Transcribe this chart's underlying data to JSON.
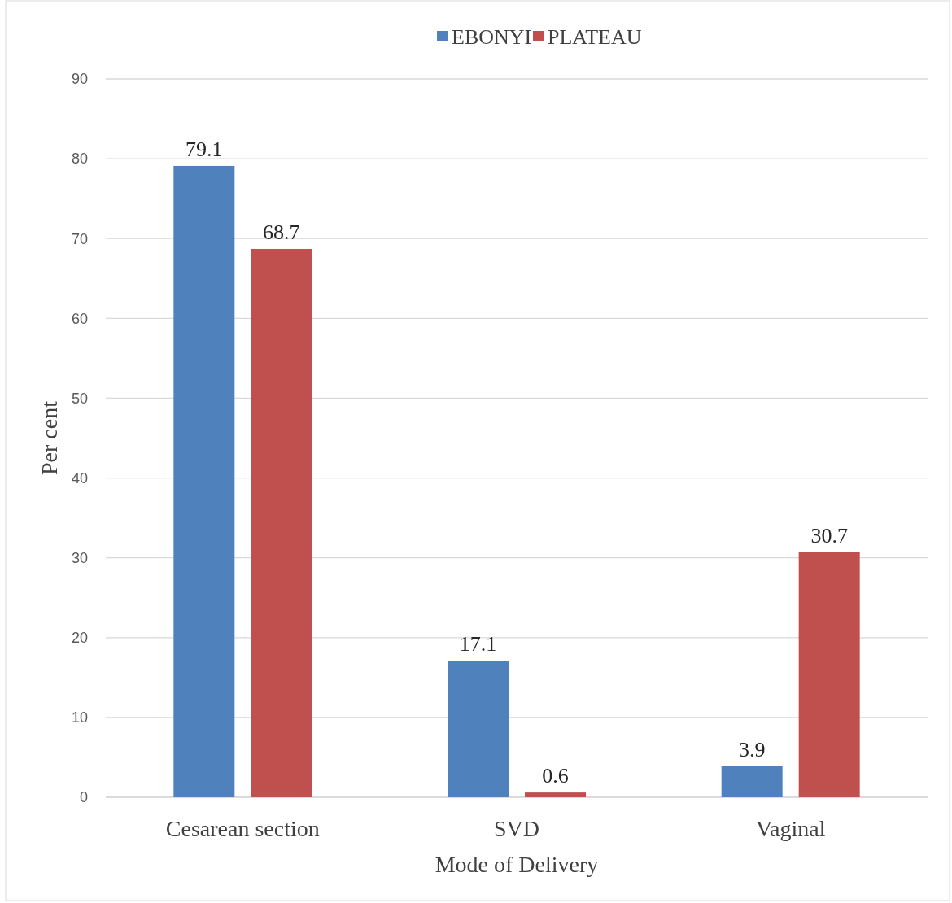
{
  "chart_data": {
    "type": "bar",
    "xlabel": "Mode of Delivery",
    "ylabel": "Per cent",
    "categories": [
      "Cesarean section",
      "SVD",
      "Vaginal"
    ],
    "series": [
      {
        "name": "EBONYI",
        "color": "#4f81bd",
        "values": [
          79.1,
          17.1,
          3.9
        ]
      },
      {
        "name": "PLATEAU",
        "color": "#c0504d",
        "values": [
          68.7,
          0.6,
          30.7
        ]
      }
    ],
    "ylim": [
      0,
      90
    ],
    "yticks": [
      0,
      10,
      20,
      30,
      40,
      50,
      60,
      70,
      80,
      90
    ],
    "grid": "y",
    "legend": "top",
    "data_labels": true
  }
}
